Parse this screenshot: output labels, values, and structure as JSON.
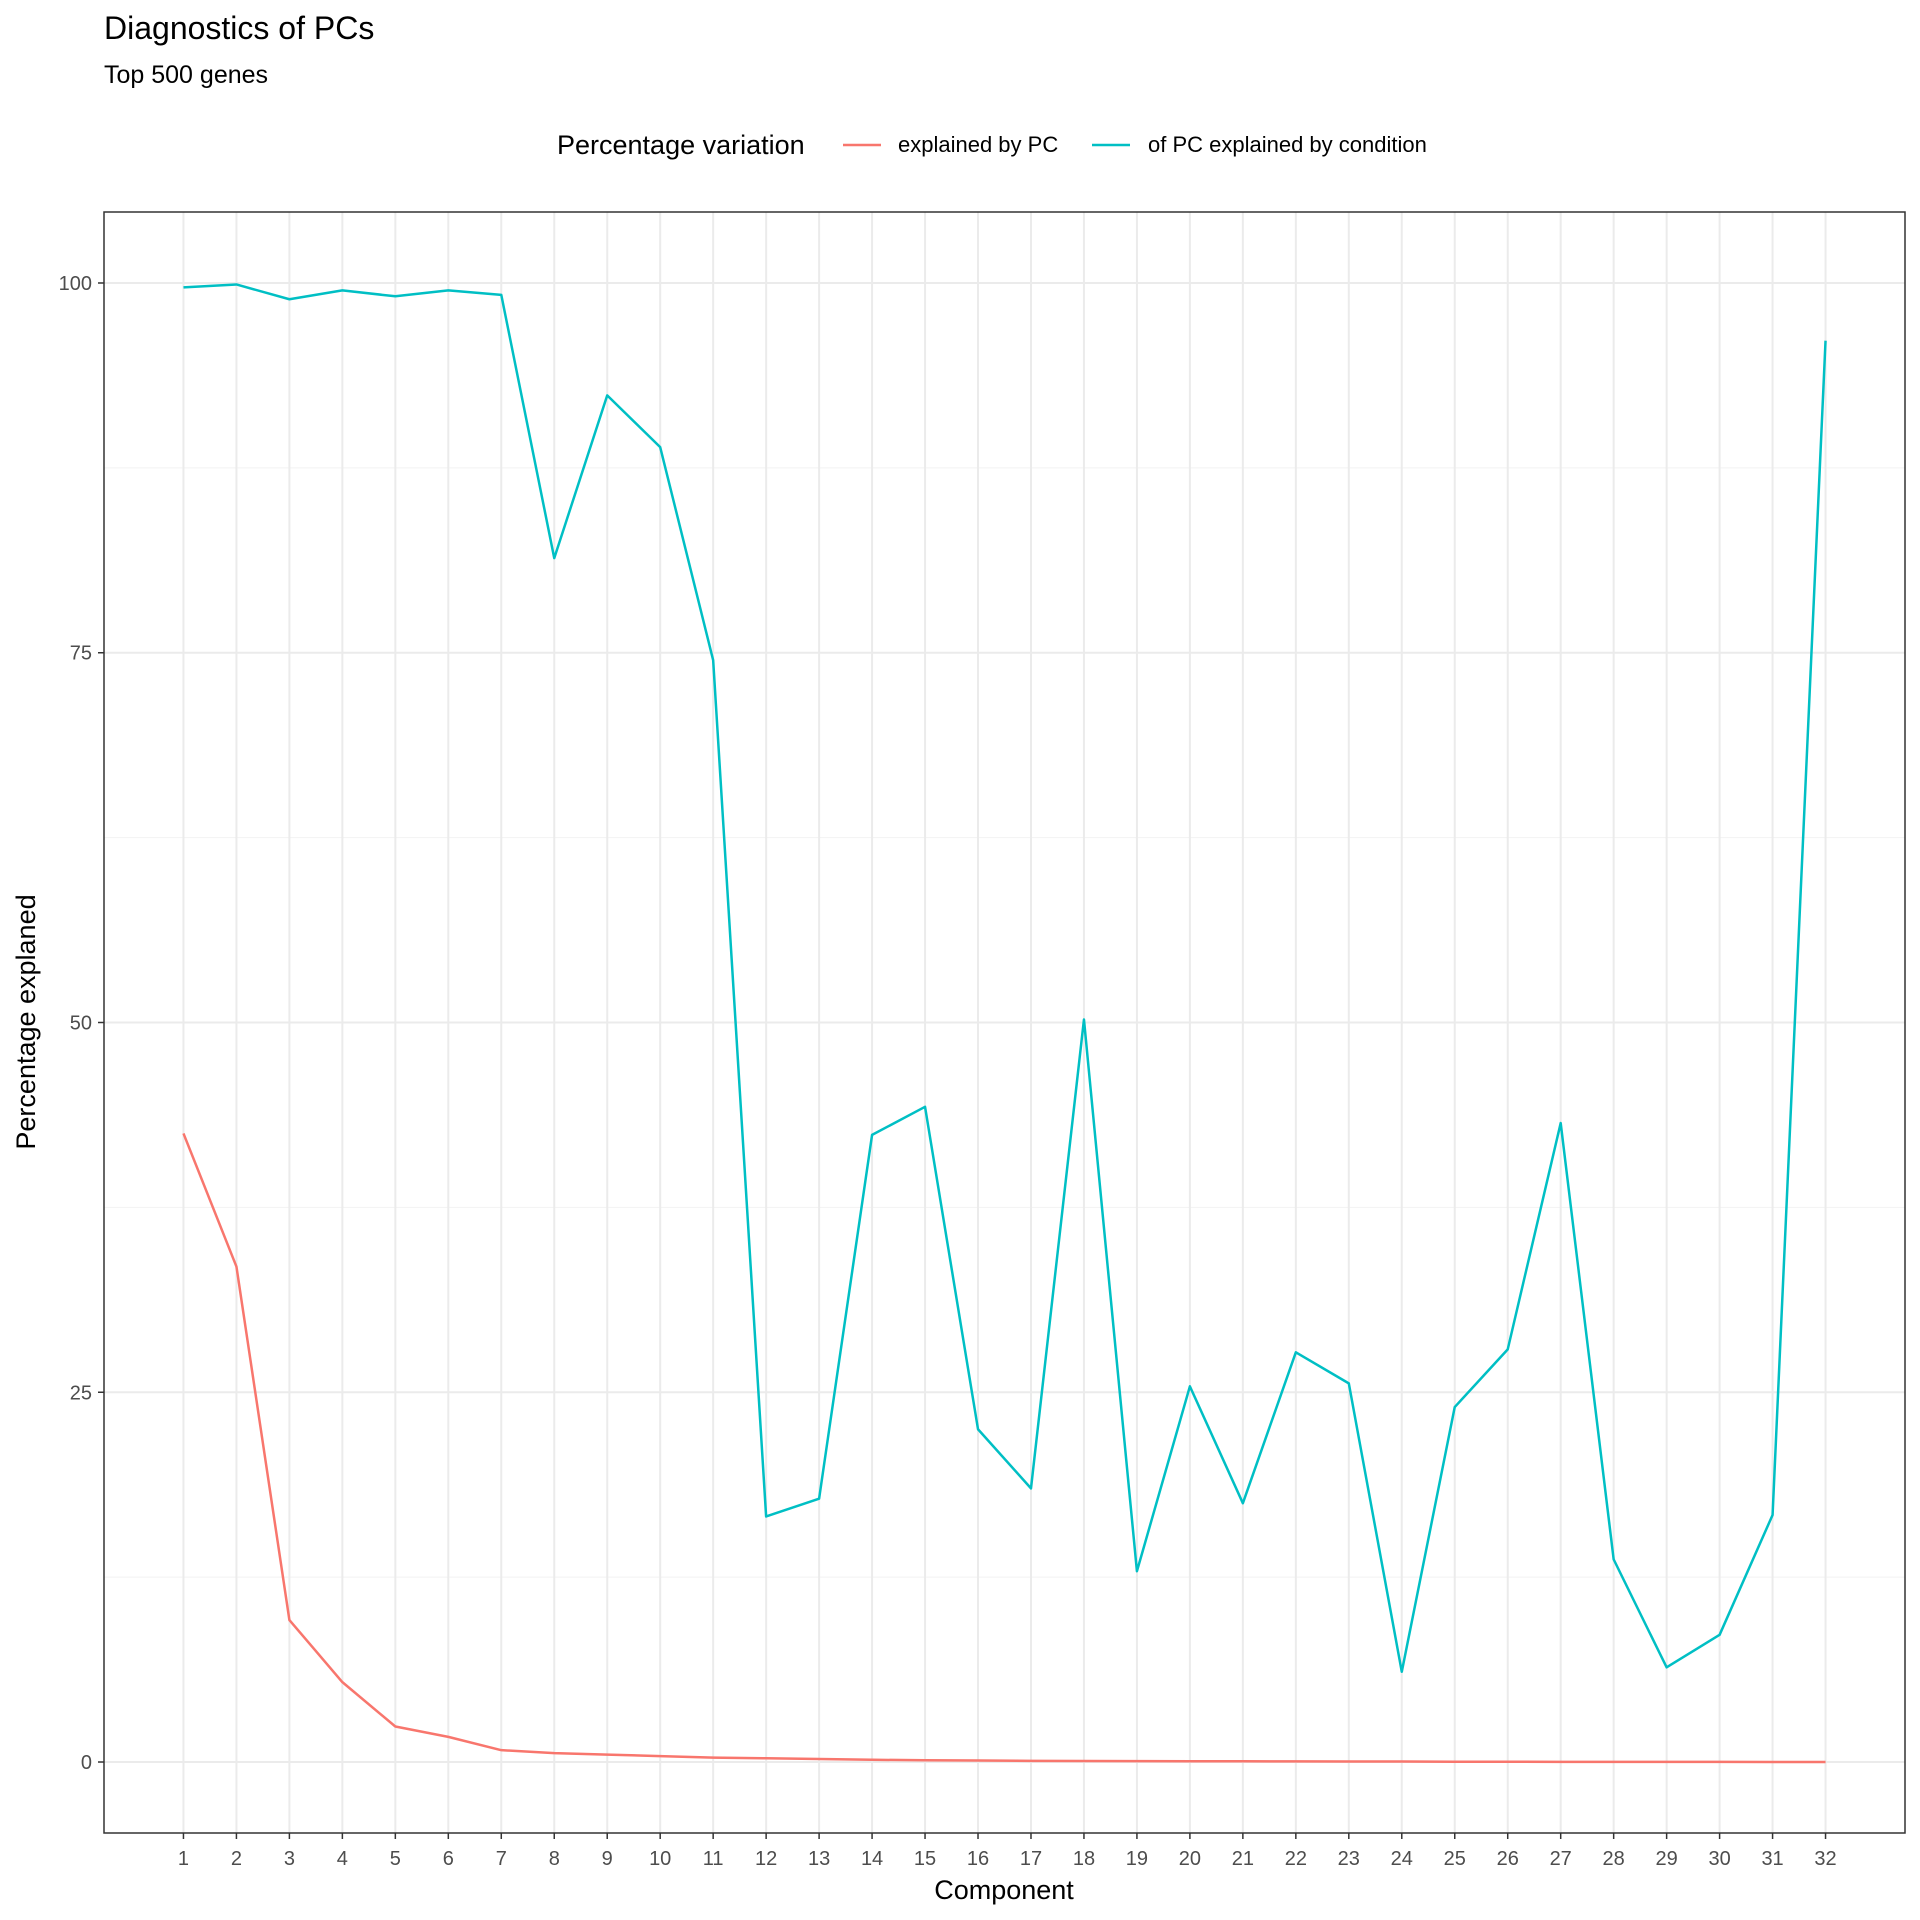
{
  "chart_data": {
    "type": "line",
    "title": "Diagnostics of PCs",
    "subtitle": "Top 500 genes",
    "xlabel": "Component",
    "ylabel": "Percentage explaned",
    "legend": {
      "title": "Percentage variation",
      "position": "top"
    },
    "x": [
      1,
      2,
      3,
      4,
      5,
      6,
      7,
      8,
      9,
      10,
      11,
      12,
      13,
      14,
      15,
      16,
      17,
      18,
      19,
      20,
      21,
      22,
      23,
      24,
      25,
      26,
      27,
      28,
      29,
      30,
      31,
      32
    ],
    "y_ticks": [
      0,
      25,
      50,
      75,
      100
    ],
    "ylim": [
      -4.8,
      104.8
    ],
    "xlim": [
      -0.5,
      33.5
    ],
    "grid": true,
    "series": [
      {
        "name": "explained by PC",
        "color": "#F8766D",
        "values": [
          42.5,
          33.5,
          9.6,
          5.4,
          2.4,
          1.7,
          0.8,
          0.6,
          0.5,
          0.4,
          0.3,
          0.25,
          0.2,
          0.15,
          0.12,
          0.1,
          0.08,
          0.07,
          0.06,
          0.05,
          0.05,
          0.04,
          0.03,
          0.03,
          0.02,
          0.02,
          0.01,
          0.01,
          0.01,
          0.01,
          0.0,
          0.0
        ]
      },
      {
        "name": "of PC explained by condition",
        "color": "#00BFC4",
        "values": [
          99.7,
          99.9,
          98.9,
          99.5,
          99.1,
          99.5,
          99.2,
          81.4,
          92.4,
          88.9,
          74.5,
          16.6,
          17.8,
          42.4,
          44.3,
          22.5,
          18.5,
          50.2,
          12.9,
          25.4,
          17.5,
          27.7,
          25.6,
          6.1,
          24.0,
          27.9,
          43.2,
          13.7,
          6.4,
          8.6,
          16.7,
          96.1
        ]
      }
    ]
  }
}
